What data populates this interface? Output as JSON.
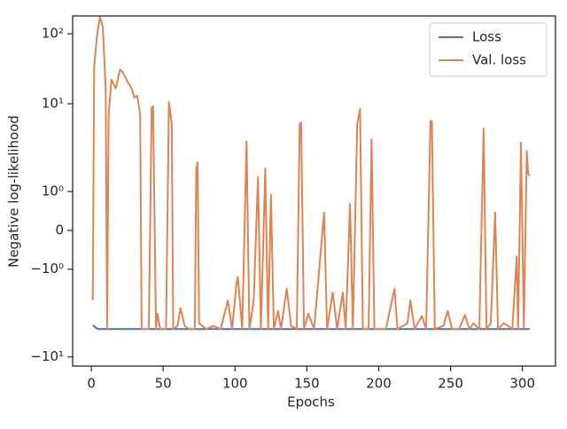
{
  "chart_data": {
    "type": "line",
    "xlabel": "Epochs",
    "ylabel": "Negative log-likelihood",
    "xlim": [
      -13,
      323
    ],
    "xticks": [
      0,
      50,
      100,
      150,
      200,
      250,
      300
    ],
    "ylim": [
      -13.5,
      180
    ],
    "yscale": "symlog",
    "linthresh": 2,
    "yticks": [
      {
        "value": 100,
        "label": "10²"
      },
      {
        "value": 10,
        "label": "10¹"
      },
      {
        "value": 1,
        "label": "10⁰"
      },
      0,
      {
        "value": -1,
        "label": "−10⁰"
      },
      {
        "value": -10,
        "label": "−10¹"
      }
    ],
    "legend": "upper right",
    "series": [
      {
        "name": "Loss",
        "color": "#4c72b0",
        "x": [
          1,
          3,
          5,
          8,
          305
        ],
        "values": [
          -3.5,
          -3.8,
          -4,
          -4,
          -4
        ]
      },
      {
        "name": "Val. loss",
        "color": "#dd8452",
        "x": [
          1,
          2,
          4,
          6,
          8,
          10,
          11,
          12,
          14,
          17,
          20,
          22,
          25,
          28,
          30,
          32,
          34,
          35,
          40,
          42,
          43,
          45,
          46,
          48,
          52,
          54,
          56,
          57,
          60,
          62,
          65,
          68,
          72,
          73,
          74,
          75,
          80,
          85,
          90,
          95,
          98,
          101,
          102,
          105,
          108,
          110,
          113,
          116,
          118,
          121,
          123,
          125,
          127,
          130,
          132,
          136,
          139,
          143,
          145,
          146,
          148,
          151,
          155,
          162,
          164,
          168,
          171,
          175,
          177,
          180,
          182,
          185,
          187,
          189,
          193,
          195,
          197,
          205,
          211,
          213,
          220,
          222,
          225,
          230,
          233,
          236,
          237,
          239,
          245,
          248,
          251,
          256,
          260,
          263,
          266,
          270,
          273,
          275,
          278,
          281,
          283,
          287,
          290,
          293,
          296,
          297,
          299,
          301,
          303,
          304,
          305
        ],
        "values": [
          -1.8,
          34,
          95,
          175,
          126,
          16.6,
          -4,
          6.9,
          22,
          16.6,
          31,
          28,
          21,
          16.6,
          12.3,
          13,
          6.9,
          -4,
          -4,
          8.7,
          9.2,
          -4,
          -2.4,
          -4,
          -4,
          10.6,
          5.1,
          -4,
          -3.6,
          -2.0,
          -3.6,
          -4,
          -4,
          1.59,
          1.75,
          -3.3,
          -4,
          -3.6,
          -4,
          -1.8,
          -4,
          -1.37,
          -1.2,
          -4,
          2.9,
          -4,
          -1.8,
          1.37,
          -4,
          1.59,
          -4,
          0.91,
          -4,
          -2.2,
          -4,
          -1.5,
          -3.6,
          -4,
          5.1,
          5.4,
          -4,
          -2.4,
          -4,
          0.46,
          -4,
          -1.6,
          -4,
          -1.6,
          -4,
          0.68,
          -4,
          5.1,
          8.4,
          -4,
          -4,
          3.1,
          -4,
          -4,
          -1.5,
          -4,
          -3.3,
          -1.8,
          -4,
          -2.6,
          -4,
          5.7,
          5.6,
          -4,
          -3.6,
          -2.2,
          -4,
          -4,
          -2.5,
          -4,
          -3.3,
          -4,
          4.4,
          -4,
          -3.3,
          0.46,
          -4,
          -3.3,
          -3.6,
          -4,
          -0.68,
          -4,
          2.8,
          -3.8,
          2.1,
          1.46,
          1.4
        ]
      }
    ]
  }
}
